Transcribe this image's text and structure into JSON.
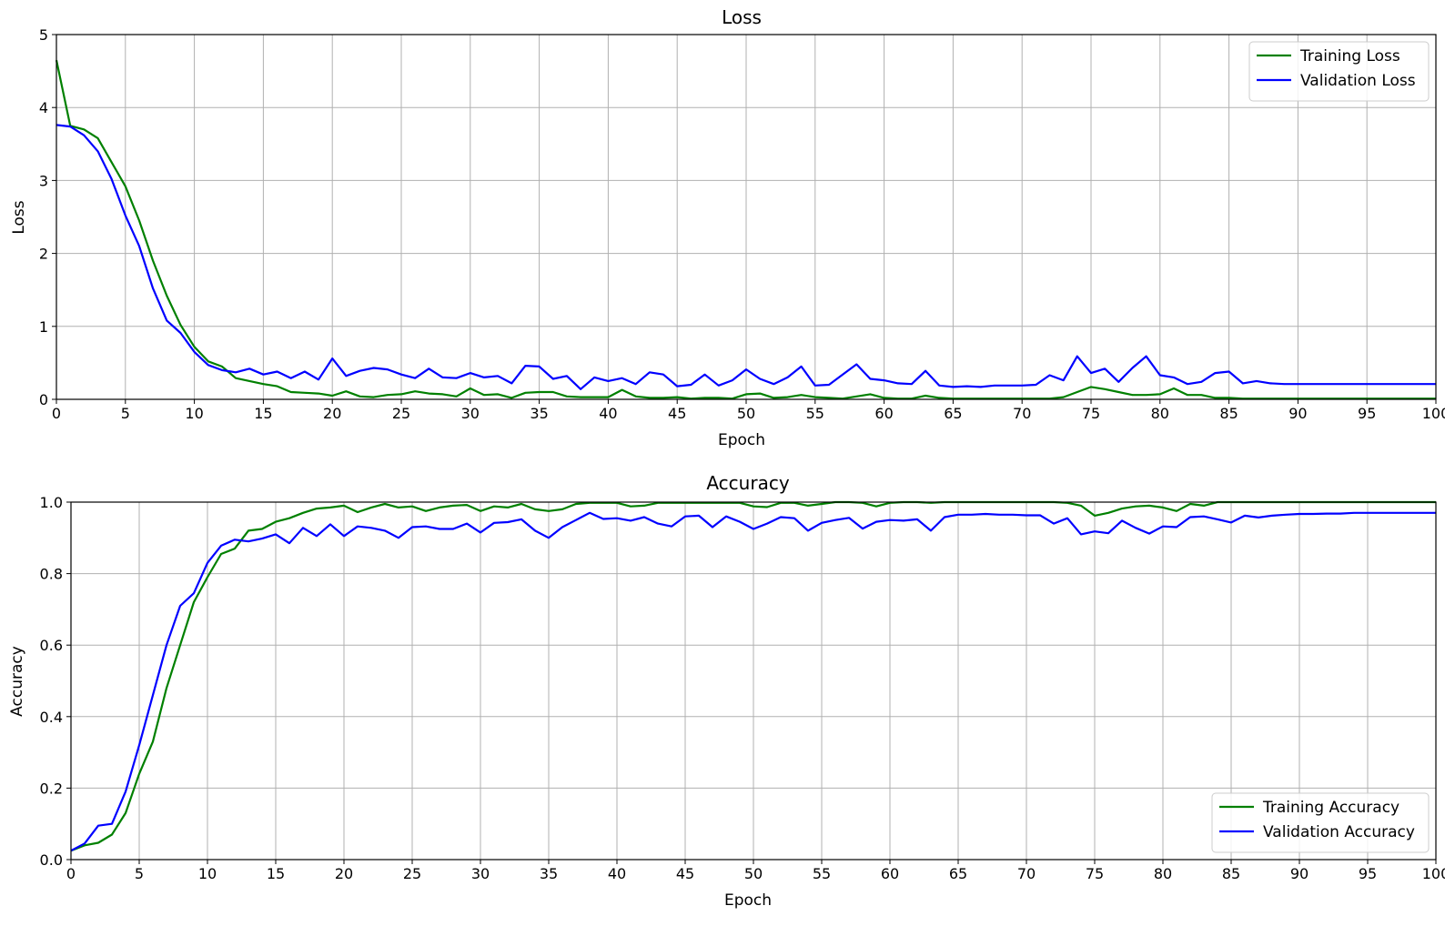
{
  "chart_data": [
    {
      "type": "line",
      "title": "Loss",
      "xlabel": "Epoch",
      "ylabel": "Loss",
      "xlim": [
        0,
        100
      ],
      "ylim": [
        0,
        5
      ],
      "xticks": [
        0,
        5,
        10,
        15,
        20,
        25,
        30,
        35,
        40,
        45,
        50,
        55,
        60,
        65,
        70,
        75,
        80,
        85,
        90,
        95,
        100
      ],
      "xtick_labels": [
        "0",
        "5",
        "10",
        "15",
        "20",
        "25",
        "30",
        "35",
        "40",
        "45",
        "50",
        "55",
        "60",
        "65",
        "70",
        "75",
        "80",
        "85",
        "90",
        "95",
        "100"
      ],
      "yticks": [
        0,
        1,
        2,
        3,
        4,
        5
      ],
      "ytick_labels": [
        "0",
        "1",
        "2",
        "3",
        "4",
        "5"
      ],
      "grid": true,
      "legend_position": "top-right",
      "x": [
        0,
        1,
        2,
        3,
        4,
        5,
        6,
        7,
        8,
        9,
        10,
        11,
        12,
        13,
        14,
        15,
        16,
        17,
        18,
        19,
        20,
        21,
        22,
        23,
        24,
        25,
        26,
        27,
        28,
        29,
        30,
        31,
        32,
        33,
        34,
        35,
        36,
        37,
        38,
        39,
        40,
        41,
        42,
        43,
        44,
        45,
        46,
        47,
        48,
        49,
        50,
        51,
        52,
        53,
        54,
        55,
        56,
        57,
        58,
        59,
        60,
        61,
        62,
        63,
        64,
        65,
        66,
        67,
        68,
        69,
        70,
        71,
        72,
        73,
        74,
        75,
        76,
        77,
        78,
        79,
        80,
        81,
        82,
        83,
        84,
        85,
        86,
        87,
        88,
        89,
        90,
        91,
        92,
        93,
        94,
        95,
        96,
        97,
        98,
        99,
        100
      ],
      "series": [
        {
          "name": "Training Loss",
          "color": "#008000",
          "values": [
            4.65,
            3.75,
            3.7,
            3.58,
            3.25,
            2.92,
            2.45,
            1.9,
            1.42,
            1.02,
            0.72,
            0.52,
            0.45,
            0.29,
            0.25,
            0.21,
            0.18,
            0.1,
            0.09,
            0.08,
            0.05,
            0.11,
            0.04,
            0.03,
            0.06,
            0.07,
            0.11,
            0.08,
            0.07,
            0.04,
            0.15,
            0.06,
            0.07,
            0.02,
            0.09,
            0.1,
            0.1,
            0.04,
            0.03,
            0.03,
            0.03,
            0.13,
            0.04,
            0.02,
            0.02,
            0.03,
            0.01,
            0.02,
            0.02,
            0.01,
            0.07,
            0.08,
            0.02,
            0.03,
            0.06,
            0.03,
            0.02,
            0.01,
            0.04,
            0.07,
            0.02,
            0.01,
            0.01,
            0.05,
            0.02,
            0.01,
            0.01,
            0.01,
            0.01,
            0.01,
            0.01,
            0.01,
            0.01,
            0.03,
            0.1,
            0.17,
            0.14,
            0.1,
            0.06,
            0.06,
            0.07,
            0.15,
            0.06,
            0.06,
            0.02,
            0.02,
            0.01,
            0.01,
            0.01,
            0.01,
            0.01,
            0.01,
            0.01,
            0.01,
            0.01,
            0.01,
            0.01,
            0.01,
            0.01,
            0.01,
            0.01
          ]
        },
        {
          "name": "Validation Loss",
          "color": "#0000ff",
          "values": [
            3.76,
            3.74,
            3.62,
            3.4,
            3.02,
            2.52,
            2.1,
            1.52,
            1.08,
            0.91,
            0.65,
            0.47,
            0.4,
            0.37,
            0.42,
            0.34,
            0.38,
            0.29,
            0.38,
            0.27,
            0.56,
            0.32,
            0.39,
            0.43,
            0.41,
            0.34,
            0.29,
            0.42,
            0.3,
            0.29,
            0.36,
            0.3,
            0.32,
            0.22,
            0.46,
            0.45,
            0.28,
            0.32,
            0.14,
            0.3,
            0.25,
            0.29,
            0.21,
            0.37,
            0.34,
            0.18,
            0.2,
            0.34,
            0.19,
            0.26,
            0.41,
            0.28,
            0.21,
            0.3,
            0.45,
            0.19,
            0.2,
            0.34,
            0.48,
            0.28,
            0.26,
            0.22,
            0.21,
            0.39,
            0.19,
            0.17,
            0.18,
            0.17,
            0.19,
            0.19,
            0.19,
            0.2,
            0.33,
            0.26,
            0.59,
            0.36,
            0.42,
            0.24,
            0.43,
            0.59,
            0.33,
            0.3,
            0.21,
            0.24,
            0.36,
            0.38,
            0.22,
            0.25,
            0.22,
            0.21,
            0.21,
            0.21,
            0.21,
            0.21,
            0.21,
            0.21,
            0.21,
            0.21,
            0.21,
            0.21,
            0.21
          ]
        }
      ]
    },
    {
      "type": "line",
      "title": "Accuracy",
      "xlabel": "Epoch",
      "ylabel": "Accuracy",
      "xlim": [
        0,
        100
      ],
      "ylim": [
        0,
        1
      ],
      "xticks": [
        0,
        5,
        10,
        15,
        20,
        25,
        30,
        35,
        40,
        45,
        50,
        55,
        60,
        65,
        70,
        75,
        80,
        85,
        90,
        95,
        100
      ],
      "xtick_labels": [
        "0",
        "5",
        "10",
        "15",
        "20",
        "25",
        "30",
        "35",
        "40",
        "45",
        "50",
        "55",
        "60",
        "65",
        "70",
        "75",
        "80",
        "85",
        "90",
        "95",
        "100"
      ],
      "yticks": [
        0,
        0.2,
        0.4,
        0.6,
        0.8,
        1.0
      ],
      "ytick_labels": [
        "0.0",
        "0.2",
        "0.4",
        "0.6",
        "0.8",
        "1.0"
      ],
      "grid": true,
      "legend_position": "bottom-right",
      "x": [
        0,
        1,
        2,
        3,
        4,
        5,
        6,
        7,
        8,
        9,
        10,
        11,
        12,
        13,
        14,
        15,
        16,
        17,
        18,
        19,
        20,
        21,
        22,
        23,
        24,
        25,
        26,
        27,
        28,
        29,
        30,
        31,
        32,
        33,
        34,
        35,
        36,
        37,
        38,
        39,
        40,
        41,
        42,
        43,
        44,
        45,
        46,
        47,
        48,
        49,
        50,
        51,
        52,
        53,
        54,
        55,
        56,
        57,
        58,
        59,
        60,
        61,
        62,
        63,
        64,
        65,
        66,
        67,
        68,
        69,
        70,
        71,
        72,
        73,
        74,
        75,
        76,
        77,
        78,
        79,
        80,
        81,
        82,
        83,
        84,
        85,
        86,
        87,
        88,
        89,
        90,
        91,
        92,
        93,
        94,
        95,
        96,
        97,
        98,
        99,
        100
      ],
      "series": [
        {
          "name": "Training Accuracy",
          "color": "#008000",
          "values": [
            0.025,
            0.04,
            0.047,
            0.07,
            0.13,
            0.24,
            0.33,
            0.48,
            0.6,
            0.72,
            0.79,
            0.855,
            0.87,
            0.92,
            0.925,
            0.945,
            0.955,
            0.97,
            0.982,
            0.985,
            0.99,
            0.972,
            0.985,
            0.995,
            0.985,
            0.988,
            0.975,
            0.985,
            0.99,
            0.992,
            0.975,
            0.988,
            0.985,
            0.995,
            0.98,
            0.975,
            0.98,
            0.995,
            0.998,
            0.998,
            0.998,
            0.988,
            0.99,
            0.998,
            0.998,
            0.998,
            0.998,
            0.998,
            0.998,
            0.998,
            0.988,
            0.986,
            0.998,
            0.998,
            0.99,
            0.995,
            1.0,
            1.0,
            0.998,
            0.988,
            0.998,
            1.0,
            1.0,
            0.998,
            1.0,
            1.0,
            1.0,
            1.0,
            1.0,
            1.0,
            1.0,
            1.0,
            1.0,
            0.998,
            0.99,
            0.962,
            0.97,
            0.982,
            0.988,
            0.99,
            0.985,
            0.975,
            0.995,
            0.99,
            1.0,
            1.0,
            1.0,
            1.0,
            1.0,
            1.0,
            1.0,
            1.0,
            1.0,
            1.0,
            1.0,
            1.0,
            1.0,
            1.0,
            1.0,
            1.0,
            1.0
          ]
        },
        {
          "name": "Validation Accuracy",
          "color": "#0000ff",
          "values": [
            0.025,
            0.045,
            0.095,
            0.1,
            0.19,
            0.32,
            0.46,
            0.6,
            0.71,
            0.745,
            0.83,
            0.878,
            0.895,
            0.89,
            0.898,
            0.91,
            0.885,
            0.928,
            0.905,
            0.938,
            0.905,
            0.932,
            0.928,
            0.92,
            0.9,
            0.93,
            0.932,
            0.925,
            0.925,
            0.94,
            0.915,
            0.942,
            0.944,
            0.952,
            0.92,
            0.9,
            0.93,
            0.95,
            0.97,
            0.953,
            0.955,
            0.948,
            0.958,
            0.94,
            0.932,
            0.96,
            0.962,
            0.93,
            0.96,
            0.945,
            0.925,
            0.94,
            0.958,
            0.955,
            0.92,
            0.942,
            0.95,
            0.956,
            0.926,
            0.945,
            0.95,
            0.948,
            0.952,
            0.92,
            0.958,
            0.965,
            0.965,
            0.967,
            0.965,
            0.965,
            0.963,
            0.963,
            0.94,
            0.955,
            0.91,
            0.918,
            0.913,
            0.948,
            0.928,
            0.912,
            0.932,
            0.93,
            0.958,
            0.96,
            0.952,
            0.943,
            0.962,
            0.957,
            0.962,
            0.965,
            0.967,
            0.967,
            0.968,
            0.968,
            0.97,
            0.97,
            0.97,
            0.97,
            0.97,
            0.97,
            0.97
          ]
        }
      ]
    }
  ]
}
